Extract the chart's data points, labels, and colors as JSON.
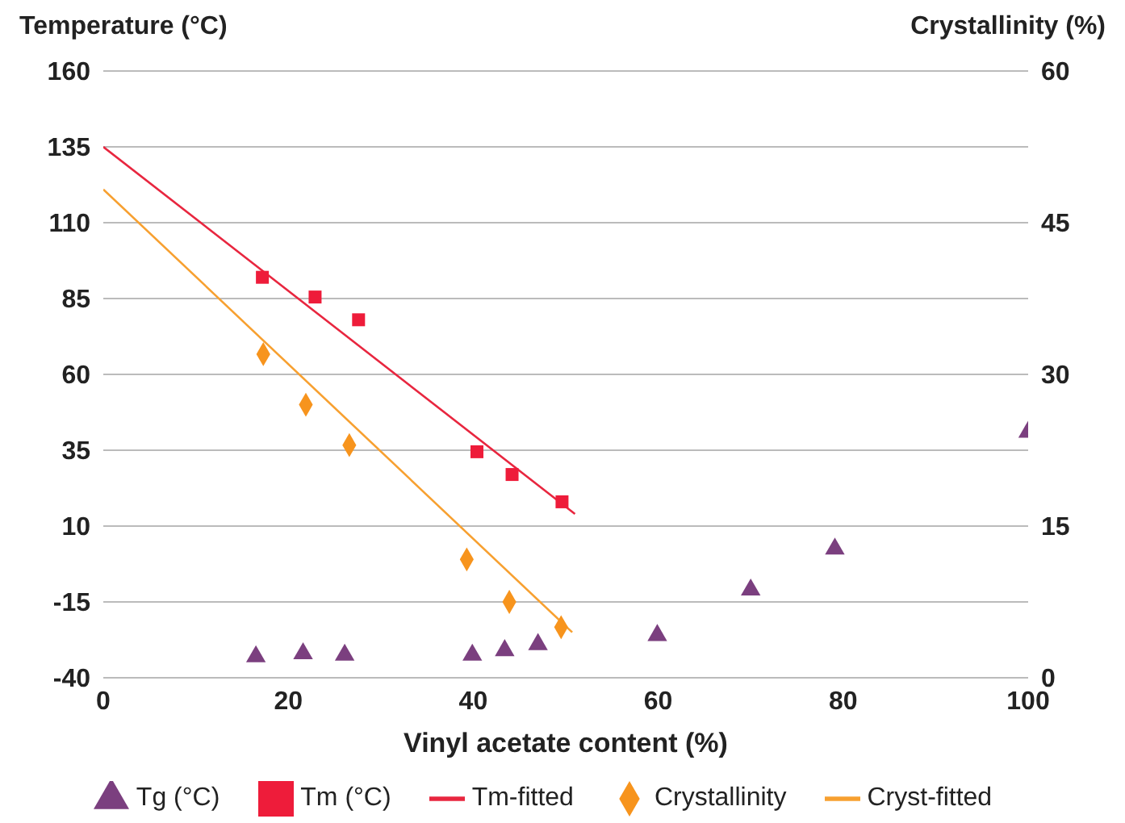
{
  "chart_data": {
    "type": "scatter",
    "xlabel": "Vinyl acetate content (%)",
    "ylabel": "Temperature (°C)",
    "y2label": "Crystallinity (%)",
    "xlim": [
      0,
      100
    ],
    "xticks": [
      0,
      20,
      40,
      60,
      80,
      100
    ],
    "ylim": [
      -40,
      160
    ],
    "yticks": [
      -40,
      -15,
      10,
      35,
      60,
      85,
      110,
      135,
      160
    ],
    "y2lim": [
      0,
      60
    ],
    "y2ticks": [
      0,
      15,
      30,
      45,
      60
    ],
    "grid": "y",
    "legend": "bottom",
    "series": [
      {
        "name": "Tg (°C)",
        "marker": "triangle",
        "color": "#7b3f7f",
        "x": [
          16.5,
          21.6,
          26.1,
          39.9,
          43.4,
          47,
          59.9,
          70,
          79.1,
          100
        ],
        "values": [
          -33,
          -32,
          -32.5,
          -32.5,
          -31,
          -29,
          -26,
          -11,
          2.5,
          41
        ]
      },
      {
        "name": "Tm (°C)",
        "marker": "square",
        "color": "#ee1c3a",
        "x": [
          17.2,
          22.9,
          27.6,
          40.4,
          44.2,
          49.6
        ],
        "values": [
          92,
          85.5,
          78,
          34.5,
          27,
          18
        ]
      },
      {
        "name": "Tm-fitted",
        "type": "line",
        "marker": "none",
        "line_style": "solid",
        "color": "#e8263f",
        "x": [
          0,
          51
        ],
        "values": [
          135,
          14
        ]
      },
      {
        "name": "Crystallinity",
        "marker": "diamond",
        "axis": "y2",
        "color": "#f7941d",
        "x": [
          17.3,
          21.9,
          26.6,
          39.3,
          43.9,
          49.5
        ],
        "values": [
          32,
          27,
          23,
          11.7,
          7.5,
          5
        ]
      },
      {
        "name": "Cryst-fitted",
        "type": "line",
        "marker": "none",
        "line_style": "solid",
        "axis": "y2",
        "color": "#f7a030",
        "x": [
          0,
          50.7
        ],
        "values": [
          48.3,
          4.5
        ]
      }
    ]
  }
}
